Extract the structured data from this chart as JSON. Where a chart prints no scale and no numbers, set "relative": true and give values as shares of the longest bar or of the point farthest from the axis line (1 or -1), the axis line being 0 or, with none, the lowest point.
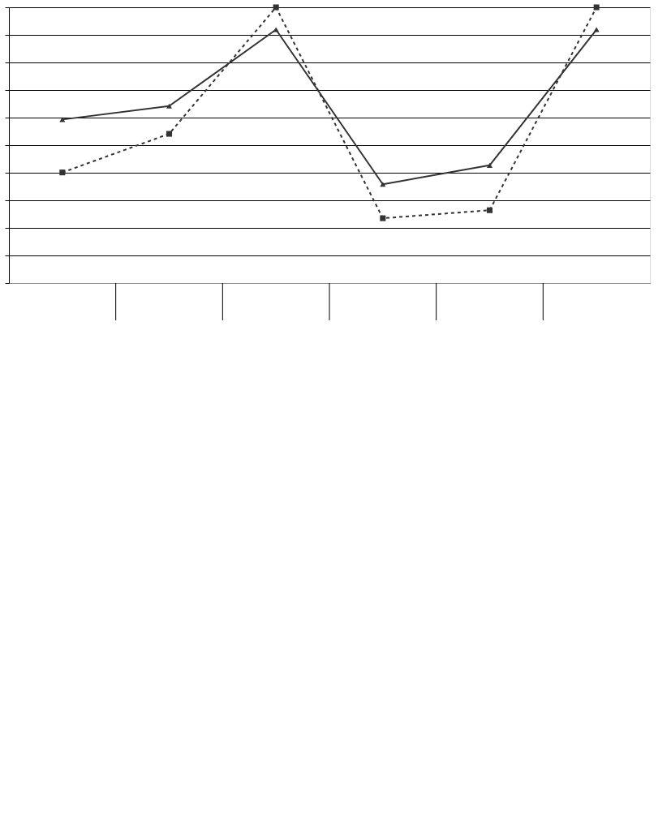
{
  "chart_data": {
    "type": "line",
    "relative": true,
    "categories": [
      null,
      null,
      null,
      null,
      null,
      null
    ],
    "series": [
      {
        "color": "#333333",
        "marker": "triangle",
        "line_style": "solid",
        "values": [
          0.593,
          0.642,
          0.919,
          0.358,
          0.427,
          0.919
        ]
      },
      {
        "color": "#333333",
        "marker": "square",
        "line_style": "dashed",
        "values": [
          0.401,
          0.541,
          1,
          0.235,
          0.264,
          1
        ]
      }
    ],
    "grid": "y"
  }
}
